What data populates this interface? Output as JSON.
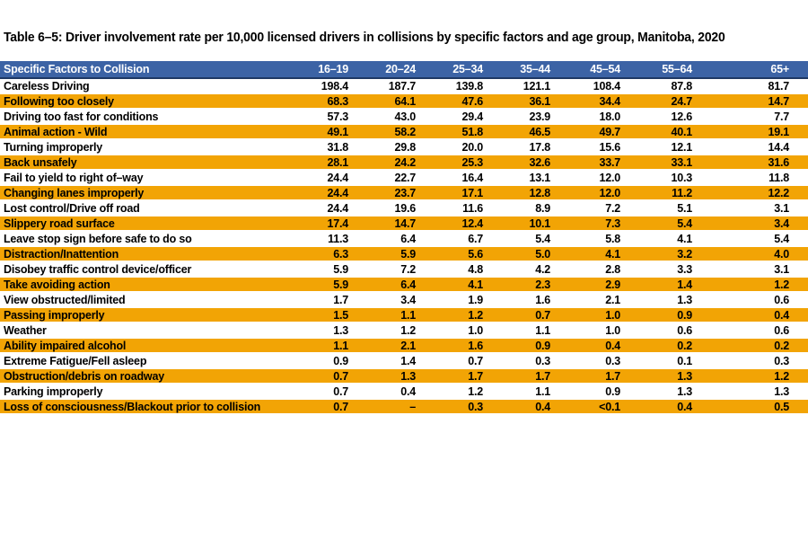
{
  "title": "Table 6–5: Driver involvement rate per 10,000 licensed drivers in collisions by specific factors and age group, Manitoba, 2020",
  "colors": {
    "header_bg": "#3C63A5",
    "header_border": "#1F3864",
    "header_text": "#FFFFFF",
    "row_stripe_orange": "#F2A405",
    "row_stripe_white": "#FFFFFF",
    "body_text": "#000000"
  },
  "chart_data": {
    "type": "table",
    "title": "Table 6–5: Driver involvement rate per 10,000 licensed drivers in collisions by specific factors and age group, Manitoba, 2020",
    "columns": [
      "Specific Factors to Collision",
      "16–19",
      "20–24",
      "25–34",
      "35–44",
      "45–54",
      "55–64",
      "65+"
    ],
    "rows": [
      {
        "factor": "Careless Driving",
        "values": [
          "198.4",
          "187.7",
          "139.8",
          "121.1",
          "108.4",
          "87.8",
          "81.7"
        ]
      },
      {
        "factor": "Following too closely",
        "values": [
          "68.3",
          "64.1",
          "47.6",
          "36.1",
          "34.4",
          "24.7",
          "14.7"
        ]
      },
      {
        "factor": "Driving too fast for conditions",
        "values": [
          "57.3",
          "43.0",
          "29.4",
          "23.9",
          "18.0",
          "12.6",
          "7.7"
        ]
      },
      {
        "factor": "Animal action - Wild",
        "values": [
          "49.1",
          "58.2",
          "51.8",
          "46.5",
          "49.7",
          "40.1",
          "19.1"
        ]
      },
      {
        "factor": "Turning improperly",
        "values": [
          "31.8",
          "29.8",
          "20.0",
          "17.8",
          "15.6",
          "12.1",
          "14.4"
        ]
      },
      {
        "factor": "Back unsafely",
        "values": [
          "28.1",
          "24.2",
          "25.3",
          "32.6",
          "33.7",
          "33.1",
          "31.6"
        ]
      },
      {
        "factor": "Fail to yield to right of–way",
        "values": [
          "24.4",
          "22.7",
          "16.4",
          "13.1",
          "12.0",
          "10.3",
          "11.8"
        ]
      },
      {
        "factor": "Changing lanes improperly",
        "values": [
          "24.4",
          "23.7",
          "17.1",
          "12.8",
          "12.0",
          "11.2",
          "12.2"
        ]
      },
      {
        "factor": "Lost control/Drive off road",
        "values": [
          "24.4",
          "19.6",
          "11.6",
          "8.9",
          "7.2",
          "5.1",
          "3.1"
        ]
      },
      {
        "factor": "Slippery road surface",
        "values": [
          "17.4",
          "14.7",
          "12.4",
          "10.1",
          "7.3",
          "5.4",
          "3.4"
        ]
      },
      {
        "factor": "Leave stop sign before safe to do so",
        "values": [
          "11.3",
          "6.4",
          "6.7",
          "5.4",
          "5.8",
          "4.1",
          "5.4"
        ]
      },
      {
        "factor": "Distraction/Inattention",
        "values": [
          "6.3",
          "5.9",
          "5.6",
          "5.0",
          "4.1",
          "3.2",
          "4.0"
        ]
      },
      {
        "factor": "Disobey traffic control device/officer",
        "values": [
          "5.9",
          "7.2",
          "4.8",
          "4.2",
          "2.8",
          "3.3",
          "3.1"
        ]
      },
      {
        "factor": "Take avoiding action",
        "values": [
          "5.9",
          "6.4",
          "4.1",
          "2.3",
          "2.9",
          "1.4",
          "1.2"
        ]
      },
      {
        "factor": "View obstructed/limited",
        "values": [
          "1.7",
          "3.4",
          "1.9",
          "1.6",
          "2.1",
          "1.3",
          "0.6"
        ]
      },
      {
        "factor": "Passing improperly",
        "values": [
          "1.5",
          "1.1",
          "1.2",
          "0.7",
          "1.0",
          "0.9",
          "0.4"
        ]
      },
      {
        "factor": "Weather",
        "values": [
          "1.3",
          "1.2",
          "1.0",
          "1.1",
          "1.0",
          "0.6",
          "0.6"
        ]
      },
      {
        "factor": "Ability impaired alcohol",
        "values": [
          "1.1",
          "2.1",
          "1.6",
          "0.9",
          "0.4",
          "0.2",
          "0.2"
        ]
      },
      {
        "factor": "Extreme Fatigue/Fell asleep",
        "values": [
          "0.9",
          "1.4",
          "0.7",
          "0.3",
          "0.3",
          "0.1",
          "0.3"
        ]
      },
      {
        "factor": "Obstruction/debris on roadway",
        "values": [
          "0.7",
          "1.3",
          "1.7",
          "1.7",
          "1.7",
          "1.3",
          "1.2"
        ]
      },
      {
        "factor": "Parking improperly",
        "values": [
          "0.7",
          "0.4",
          "1.2",
          "1.1",
          "0.9",
          "1.3",
          "1.3"
        ]
      },
      {
        "factor": "Loss of consciousness/Blackout prior to collision",
        "values": [
          "0.7",
          "–",
          "0.3",
          "0.4",
          "<0.1",
          "0.4",
          "0.5"
        ]
      }
    ]
  }
}
